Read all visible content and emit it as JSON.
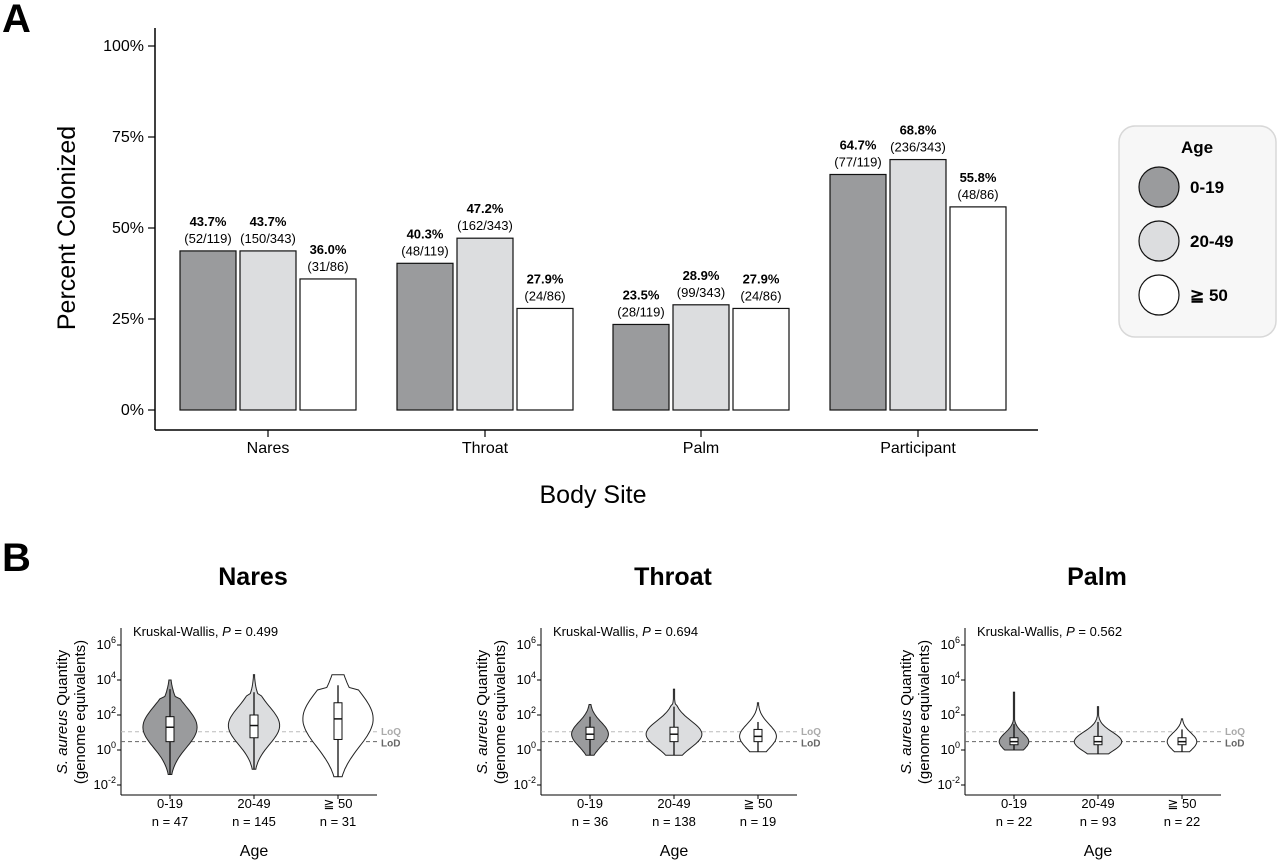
{
  "panel_a": {
    "letter": "A",
    "ylabel": "Percent Colonized",
    "xlabel": "Body Site",
    "yticks": [
      "0%",
      "25%",
      "50%",
      "75%",
      "100%"
    ],
    "legend": {
      "title": "Age",
      "items": [
        {
          "label": "0-19",
          "color": "#9a9b9d"
        },
        {
          "label": "20-49",
          "color": "#dcdddf"
        },
        {
          "label": "≧ 50",
          "color": "#ffffff"
        }
      ]
    }
  },
  "panel_b": {
    "letter": "B",
    "ylabel_italic": "S. aureus",
    "ylabel_rest": " Quantity",
    "ylabel_line2": "(genome equivalents)",
    "xlabel": "Age",
    "lod_label": "LoD",
    "loq_label": "LoQ",
    "ytick_base": "10",
    "ytick_exps": [
      "-2",
      "0",
      "2",
      "4",
      "6"
    ],
    "kw_prefix": "Kruskal-Wallis, ",
    "kw_p": "P",
    "kw_eq": " = "
  },
  "chart_data": [
    {
      "type": "bar",
      "ylim": [
        0,
        100
      ],
      "categories": [
        "Nares",
        "Throat",
        "Palm",
        "Participant"
      ],
      "series": [
        {
          "name": "0-19",
          "values": [
            43.7,
            40.3,
            23.5,
            64.7
          ],
          "pct_labels": [
            "43.7%",
            "40.3%",
            "23.5%",
            "64.7%"
          ],
          "frac_labels": [
            "(52/119)",
            "(48/119)",
            "(28/119)",
            "(77/119)"
          ]
        },
        {
          "name": "20-49",
          "values": [
            43.7,
            47.2,
            28.9,
            68.8
          ],
          "pct_labels": [
            "43.7%",
            "47.2%",
            "28.9%",
            "68.8%"
          ],
          "frac_labels": [
            "(150/343)",
            "(162/343)",
            "(99/343)",
            "(236/343)"
          ]
        },
        {
          "name": "≧ 50",
          "values": [
            36.0,
            27.9,
            27.9,
            55.8
          ],
          "pct_labels": [
            "36.0%",
            "27.9%",
            "27.9%",
            "55.8%"
          ],
          "frac_labels": [
            "(31/86)",
            "(24/86)",
            "(24/86)",
            "(48/86)"
          ]
        }
      ]
    },
    {
      "type": "violin",
      "title": "Nares",
      "p_value": "0.499",
      "groups": [
        {
          "age": "0-19",
          "n_label": "n = 47",
          "color": "#9a9b9d",
          "min": 0.04,
          "q1": 3,
          "median": 20,
          "q3": 80,
          "max": 3000,
          "outlier_max": 10000
        },
        {
          "age": "20-49",
          "n_label": "n = 145",
          "color": "#dcdddf",
          "min": 0.08,
          "q1": 5,
          "median": 25,
          "q3": 100,
          "max": 2000,
          "outlier_max": 20000
        },
        {
          "age": "≧ 50",
          "n_label": "n = 31",
          "color": "#ffffff",
          "min": 0.03,
          "q1": 4,
          "median": 60,
          "q3": 500,
          "max": 5000,
          "outlier_max": 20000
        }
      ]
    },
    {
      "type": "violin",
      "title": "Throat",
      "p_value": "0.694",
      "groups": [
        {
          "age": "0-19",
          "n_label": "n = 36",
          "color": "#9a9b9d",
          "min": 0.5,
          "q1": 4,
          "median": 8,
          "q3": 20,
          "max": 80,
          "outlier_max": 400
        },
        {
          "age": "20-49",
          "n_label": "n = 138",
          "color": "#dcdddf",
          "min": 0.5,
          "q1": 3,
          "median": 8,
          "q3": 20,
          "max": 300,
          "outlier_max": 3000
        },
        {
          "age": "≧ 50",
          "n_label": "n = 19",
          "color": "#ffffff",
          "min": 0.8,
          "q1": 3,
          "median": 6,
          "q3": 15,
          "max": 40,
          "outlier_max": 500
        }
      ]
    },
    {
      "type": "violin",
      "title": "Palm",
      "p_value": "0.562",
      "groups": [
        {
          "age": "0-19",
          "n_label": "n = 22",
          "color": "#9a9b9d",
          "min": 1,
          "q1": 2,
          "median": 3,
          "q3": 5,
          "max": 30,
          "outlier_max": 2000
        },
        {
          "age": "20-49",
          "n_label": "n = 93",
          "color": "#dcdddf",
          "min": 0.6,
          "q1": 2,
          "median": 3,
          "q3": 6,
          "max": 40,
          "outlier_max": 300
        },
        {
          "age": "≧ 50",
          "n_label": "n = 22",
          "color": "#ffffff",
          "min": 0.8,
          "q1": 2,
          "median": 3,
          "q3": 5,
          "max": 15,
          "outlier_max": 60
        }
      ]
    }
  ]
}
